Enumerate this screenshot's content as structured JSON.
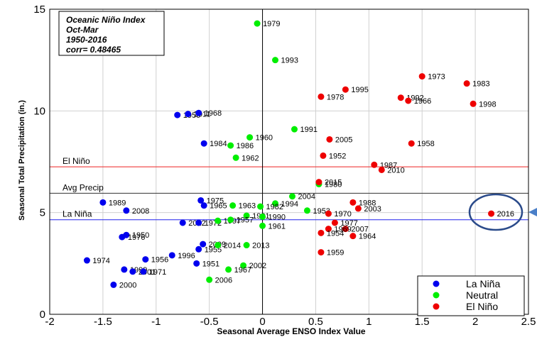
{
  "chart_data": {
    "type": "scatter",
    "inset_lines": [
      "Oceanic Niño Index",
      "Oct-Mar",
      "1950-2016",
      "corr= 0.48465"
    ],
    "xlabel": "Seasonal Average ENSO Index Value",
    "ylabel": "Seasonal Total Precipitation (in.)",
    "xlim": [
      -2,
      2.5
    ],
    "ylim": [
      0,
      15
    ],
    "x_ticks": [
      "-2",
      "-1.5",
      "-1",
      "-0.5",
      "0",
      "0.5",
      "1",
      "1.5",
      "2",
      "2.5"
    ],
    "y_ticks": [
      "0",
      "5",
      "10",
      "15"
    ],
    "grid": true,
    "legend_position": "bottom-right",
    "colors": {
      "La Niña": "#0000ee",
      "Neutral": "#00ee00",
      "El Niño": "#ee0000",
      "axis": "#000000"
    },
    "reference_lines": [
      {
        "label": "El Niño",
        "y": 7.25,
        "color": "#ee2222"
      },
      {
        "label": "Avg Precip",
        "y": 5.95,
        "color": "#333333"
      },
      {
        "label": "La Niña",
        "y": 4.65,
        "color": "#2222ee"
      }
    ],
    "highlight": {
      "label": "2016",
      "x": 2.15,
      "y": 4.95
    },
    "series": [
      {
        "name": "La Niña",
        "points": [
          {
            "x": -0.8,
            "y": 9.8,
            "label": "1950"
          },
          {
            "x": -0.7,
            "y": 9.85,
            "label": "2011"
          },
          {
            "x": -0.6,
            "y": 9.9,
            "label": "1968"
          },
          {
            "x": -0.55,
            "y": 8.4,
            "label": "1984"
          },
          {
            "x": -0.58,
            "y": 5.6,
            "label": "1975"
          },
          {
            "x": -0.55,
            "y": 5.35,
            "label": "1965"
          },
          {
            "x": -1.5,
            "y": 5.5,
            "label": "1989"
          },
          {
            "x": -1.28,
            "y": 5.1,
            "label": "2008"
          },
          {
            "x": -0.75,
            "y": 4.5,
            "label": "2012"
          },
          {
            "x": -0.6,
            "y": 4.5,
            "label": "1972"
          },
          {
            "x": -1.28,
            "y": 3.9,
            "label": "1950"
          },
          {
            "x": -1.32,
            "y": 3.8,
            "label": "1976"
          },
          {
            "x": -0.56,
            "y": 3.45,
            "label": "2009"
          },
          {
            "x": -0.6,
            "y": 3.2,
            "label": "1955"
          },
          {
            "x": -0.85,
            "y": 2.9,
            "label": "1996"
          },
          {
            "x": -1.1,
            "y": 2.7,
            "label": "1956"
          },
          {
            "x": -0.62,
            "y": 2.5,
            "label": "1951"
          },
          {
            "x": -1.65,
            "y": 2.65,
            "label": "1974"
          },
          {
            "x": -1.3,
            "y": 2.2,
            "label": "1999"
          },
          {
            "x": -1.22,
            "y": 2.1,
            "label": "2001"
          },
          {
            "x": -1.12,
            "y": 2.1,
            "label": "1971"
          },
          {
            "x": -1.4,
            "y": 1.45,
            "label": "2000"
          }
        ]
      },
      {
        "name": "Neutral",
        "points": [
          {
            "x": -0.05,
            "y": 14.3,
            "label": "1979"
          },
          {
            "x": 0.12,
            "y": 12.5,
            "label": "1993"
          },
          {
            "x": 0.3,
            "y": 9.1,
            "label": "1991"
          },
          {
            "x": -0.12,
            "y": 8.7,
            "label": "1960"
          },
          {
            "x": -0.3,
            "y": 8.3,
            "label": "1986"
          },
          {
            "x": -0.25,
            "y": 7.7,
            "label": "1962"
          },
          {
            "x": 0.28,
            "y": 5.8,
            "label": "2004"
          },
          {
            "x": 0.12,
            "y": 5.45,
            "label": "1994"
          },
          {
            "x": -0.28,
            "y": 5.35,
            "label": "1963"
          },
          {
            "x": -0.02,
            "y": 5.3,
            "label": "1982"
          },
          {
            "x": 0.42,
            "y": 5.1,
            "label": "1953"
          },
          {
            "x": -0.15,
            "y": 4.85,
            "label": "1981"
          },
          {
            "x": 0.0,
            "y": 4.8,
            "label": "1990"
          },
          {
            "x": -0.42,
            "y": 4.6,
            "label": "1997"
          },
          {
            "x": -0.3,
            "y": 4.65,
            "label": "1957"
          },
          {
            "x": 0.0,
            "y": 4.35,
            "label": "1961"
          },
          {
            "x": 0.53,
            "y": 6.4,
            "label": "1980"
          },
          {
            "x": -0.42,
            "y": 3.4,
            "label": "2014"
          },
          {
            "x": -0.15,
            "y": 3.4,
            "label": "2013"
          },
          {
            "x": -0.18,
            "y": 2.4,
            "label": "2002"
          },
          {
            "x": -0.32,
            "y": 2.2,
            "label": "1967"
          },
          {
            "x": -0.5,
            "y": 1.7,
            "label": "2006"
          }
        ]
      },
      {
        "name": "El Niño",
        "points": [
          {
            "x": 1.5,
            "y": 11.7,
            "label": "1973"
          },
          {
            "x": 1.92,
            "y": 11.35,
            "label": "1983"
          },
          {
            "x": 0.78,
            "y": 11.05,
            "label": "1995"
          },
          {
            "x": 0.55,
            "y": 10.7,
            "label": "1978"
          },
          {
            "x": 1.3,
            "y": 10.65,
            "label": "1992"
          },
          {
            "x": 1.37,
            "y": 10.5,
            "label": "1966"
          },
          {
            "x": 1.98,
            "y": 10.35,
            "label": "1998"
          },
          {
            "x": 0.63,
            "y": 8.6,
            "label": "2005"
          },
          {
            "x": 1.4,
            "y": 8.4,
            "label": "1958"
          },
          {
            "x": 0.57,
            "y": 7.8,
            "label": "1952"
          },
          {
            "x": 1.05,
            "y": 7.35,
            "label": "1987"
          },
          {
            "x": 1.12,
            "y": 7.1,
            "label": "2010"
          },
          {
            "x": 0.53,
            "y": 6.5,
            "label": "2015"
          },
          {
            "x": 0.85,
            "y": 5.5,
            "label": "1988"
          },
          {
            "x": 0.9,
            "y": 5.2,
            "label": "2003"
          },
          {
            "x": 0.62,
            "y": 4.95,
            "label": "1970"
          },
          {
            "x": 0.68,
            "y": 4.5,
            "label": "1977"
          },
          {
            "x": 0.78,
            "y": 4.2,
            "label": "2007"
          },
          {
            "x": 0.62,
            "y": 4.2,
            "label": "1969"
          },
          {
            "x": 0.55,
            "y": 4.0,
            "label": "1954"
          },
          {
            "x": 0.85,
            "y": 3.85,
            "label": "1964"
          },
          {
            "x": 0.55,
            "y": 3.05,
            "label": "1959"
          },
          {
            "x": 2.15,
            "y": 4.95,
            "label": "2016"
          }
        ]
      }
    ]
  }
}
